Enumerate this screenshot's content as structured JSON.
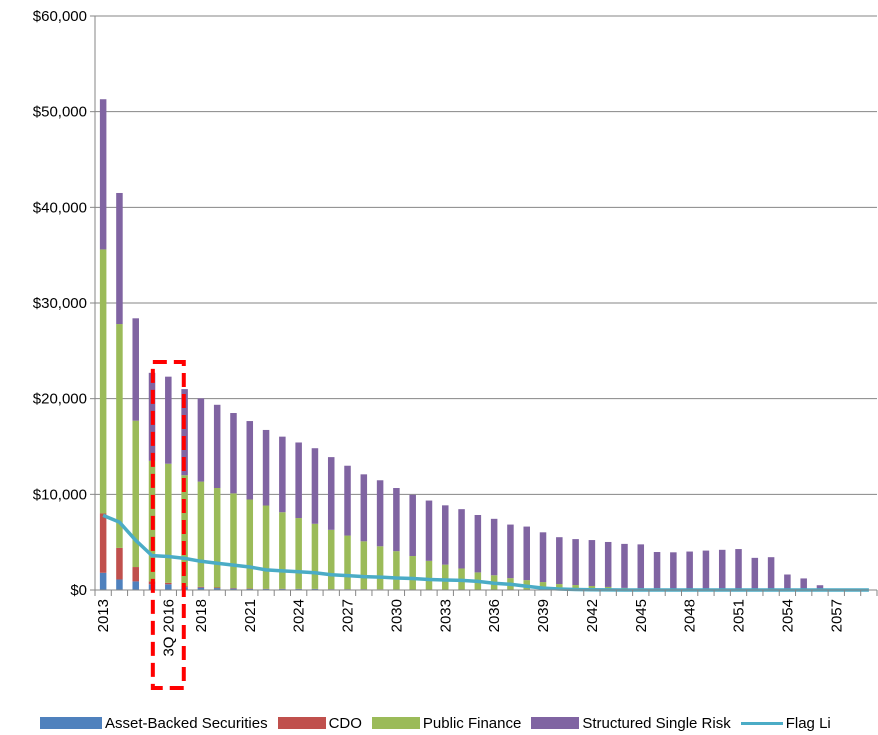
{
  "chart_data": {
    "type": "bar",
    "stacked": true,
    "title": "",
    "xlabel": "",
    "ylabel": "",
    "ylim": [
      0,
      60000
    ],
    "y_ticks": [
      "$0",
      "$10,000",
      "$20,000",
      "$30,000",
      "$40,000",
      "$50,000",
      "$60,000"
    ],
    "y_tick_values": [
      0,
      10000,
      20000,
      30000,
      40000,
      50000,
      60000
    ],
    "categories": [
      "2013",
      "2014",
      "2015",
      "2016",
      "3Q 2016",
      "2017",
      "2018",
      "2019",
      "2020",
      "2021",
      "2022",
      "2023",
      "2024",
      "2025",
      "2026",
      "2027",
      "2028",
      "2029",
      "2030",
      "2031",
      "2032",
      "2033",
      "2034",
      "2035",
      "2036",
      "2037",
      "2038",
      "2039",
      "2040",
      "2041",
      "2042",
      "2043",
      "2044",
      "2045",
      "2046",
      "2047",
      "2048",
      "2049",
      "2050",
      "2051",
      "2052",
      "2053",
      "2054",
      "2055",
      "2056",
      "2057",
      "2058",
      "2059"
    ],
    "x_tick_labels": [
      "2013",
      "",
      "",
      "",
      "3Q 2016",
      "",
      "2018",
      "",
      "",
      "2021",
      "",
      "",
      "2024",
      "",
      "",
      "2027",
      "",
      "",
      "2030",
      "",
      "",
      "2033",
      "",
      "",
      "2036",
      "",
      "",
      "2039",
      "",
      "",
      "2042",
      "",
      "",
      "2045",
      "",
      "",
      "2048",
      "",
      "",
      "2051",
      "",
      "",
      "2054",
      "",
      "",
      "2057",
      "",
      ""
    ],
    "series": [
      {
        "name": "Asset-Backed Securities",
        "color": "#4F81BD",
        "values": [
          1800,
          1100,
          900,
          600,
          600,
          300,
          250,
          200,
          150,
          120,
          100,
          100,
          100,
          100,
          80,
          80,
          80,
          60,
          60,
          50,
          50,
          50,
          50,
          40,
          40,
          40,
          30,
          30,
          20,
          20,
          20,
          20,
          20,
          20,
          20,
          20,
          20,
          20,
          20,
          20,
          10,
          0,
          0,
          0,
          0,
          0,
          0,
          0
        ]
      },
      {
        "name": "CDO",
        "color": "#C0504D",
        "values": [
          6200,
          3300,
          1500,
          300,
          150,
          100,
          80,
          60,
          50,
          40,
          30,
          30,
          20,
          20,
          10,
          10,
          10,
          10,
          0,
          0,
          0,
          0,
          0,
          0,
          0,
          0,
          0,
          0,
          0,
          0,
          0,
          0,
          0,
          0,
          0,
          0,
          0,
          0,
          0,
          0,
          0,
          0,
          0,
          0,
          0,
          0,
          0,
          0
        ]
      },
      {
        "name": "Public Finance",
        "color": "#9BBB59",
        "values": [
          27600,
          23400,
          15300,
          12600,
          12450,
          11600,
          11000,
          10400,
          9900,
          9300,
          8700,
          8000,
          7400,
          6800,
          6200,
          5600,
          5000,
          4500,
          4000,
          3500,
          3000,
          2600,
          2200,
          1800,
          1500,
          1200,
          1000,
          800,
          600,
          500,
          400,
          300,
          200,
          150,
          150,
          120,
          100,
          100,
          80,
          60,
          50,
          30,
          20,
          10,
          0,
          0,
          0,
          0
        ]
      },
      {
        "name": "Structured Single Risk",
        "color": "#8064A2",
        "values": [
          15700,
          13700,
          10700,
          9200,
          9100,
          9000,
          8700,
          8700,
          8400,
          8200,
          7900,
          7900,
          7900,
          7900,
          7600,
          7300,
          7000,
          6900,
          6600,
          6400,
          6300,
          6200,
          6200,
          6000,
          5900,
          5600,
          5600,
          5200,
          4900,
          4800,
          4800,
          4700,
          4600,
          4600,
          3800,
          3800,
          3900,
          4000,
          4100,
          4200,
          3300,
          3400,
          1600,
          1200,
          500,
          150,
          50,
          0
        ]
      },
      {
        "name": "Flag Li",
        "color": "#4BACC6",
        "type": "line",
        "values": [
          7800,
          7100,
          5200,
          3600,
          3500,
          3300,
          3000,
          2800,
          2600,
          2400,
          2100,
          2000,
          1900,
          1800,
          1600,
          1500,
          1400,
          1350,
          1250,
          1200,
          1100,
          1050,
          1000,
          900,
          700,
          600,
          400,
          200,
          100,
          50,
          20,
          10,
          0,
          0,
          0,
          0,
          0,
          0,
          0,
          0,
          0,
          0,
          0,
          0,
          0,
          0,
          0,
          0
        ]
      }
    ],
    "grid": true,
    "legend_position": "bottom",
    "annotation": "red dashed box around 3Q 2016"
  }
}
